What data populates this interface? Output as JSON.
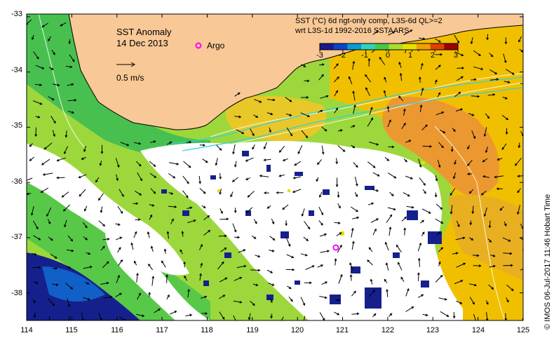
{
  "map": {
    "title": "SST Anomaly",
    "date": "14 Dec 2013",
    "argo_label": "Argo",
    "velocity_scale_label": "0.5 m/s",
    "sst_title_line1": "SST (°C) 6d ngt-only comp, L3S-6d QL>=2",
    "sst_title_line2": "wrt L3S-1d 1992-2016 SSTAARS",
    "credit": "©  IMOS 06-Jul-2017 11:46 Hobart Time"
  },
  "axes": {
    "lon_ticks": [
      "114",
      "115",
      "116",
      "117",
      "118",
      "119",
      "120",
      "121",
      "122",
      "123",
      "124",
      "125"
    ],
    "lat_ticks": [
      "-33",
      "-34",
      "-35",
      "-36",
      "-37",
      "-38"
    ]
  },
  "colorbar": {
    "min": -3,
    "max": 3,
    "ticks": [
      "-3",
      "-2",
      "-1",
      "0",
      "1",
      "2",
      "3"
    ],
    "colors": [
      "#1a1a8c",
      "#0b44c8",
      "#0a9ad6",
      "#34d1c0",
      "#48c848",
      "#a8dc30",
      "#e8e000",
      "#f0a000",
      "#e04000",
      "#a00000"
    ]
  },
  "colors": {
    "land": "#f8c896",
    "no_data": "#ffffff",
    "argo_marker": "#ff00ff",
    "current_arrow": "#000000",
    "contour": "#ffffff"
  },
  "argo_float": {
    "lon": 120.85,
    "lat": -37.18
  }
}
